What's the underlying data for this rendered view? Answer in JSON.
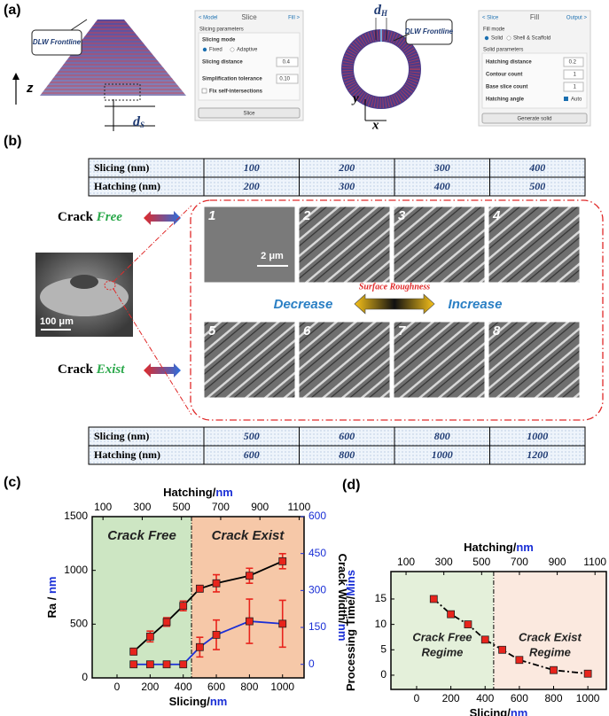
{
  "panel_a": {
    "label": "(a)",
    "left": {
      "callout": "DLW Frontline",
      "axis": "z",
      "dim": "d",
      "dim_sub": "S"
    },
    "slice_panel": {
      "back": "< Model",
      "title": "Slice",
      "next": "Fill >",
      "group": "Slicing parameters",
      "mode_label": "Slicing mode",
      "options": [
        "Fixed",
        "Adaptive"
      ],
      "fields": [
        [
          "Slicing distance",
          "0.4"
        ],
        [
          "Simplification tolerance",
          "0.10"
        ]
      ],
      "checkbox": "Fix self-intersections",
      "button": "Slice"
    },
    "right": {
      "callout": "DLW Frontline",
      "dim": "d",
      "dim_sub": "H",
      "axis_y": "y",
      "axis_x": "x"
    },
    "fill_panel": {
      "back": "< Slice",
      "title": "Fill",
      "next": "Output >",
      "group": "Fill mode",
      "options": [
        "Solid",
        "Shell & Scaffold"
      ],
      "group2": "Solid parameters",
      "fields": [
        [
          "Hatching distance",
          "0.2"
        ],
        [
          "Contour count",
          "1"
        ],
        [
          "Base slice count",
          "1"
        ]
      ],
      "checkbox": "Hatching angle",
      "checkbox_value": "Auto",
      "button": "Generate solid"
    }
  },
  "panel_b": {
    "label": "(b)",
    "table_top": {
      "rows": [
        [
          "Slicing (nm)",
          100,
          200,
          300,
          400
        ],
        [
          "Hatching (nm)",
          200,
          300,
          400,
          500
        ]
      ]
    },
    "table_bottom": {
      "rows": [
        [
          "Slicing (nm)",
          500,
          600,
          800,
          1000
        ],
        [
          "Hatching (nm)",
          600,
          800,
          1000,
          1200
        ]
      ]
    },
    "crack_free": {
      "word": "Crack",
      "state": "Free"
    },
    "crack_exist": {
      "word": "Crack",
      "state": "Exist"
    },
    "sem_scale": "100 μm",
    "tile_scale": "2 μm",
    "tiles": [
      1,
      2,
      3,
      4,
      5,
      6,
      7,
      8
    ],
    "roughness": "Surface Roughness",
    "decrease": "Decrease",
    "increase": "Increase"
  },
  "chart_data": [
    {
      "type": "line",
      "panel_label": "(c)",
      "x_label": "Slicing/",
      "x_label_unit": "nm",
      "x2_label": "Hatching/",
      "x2_label_unit": "nm",
      "y_label": "Ra / ",
      "y_label_unit": "nm",
      "y2_label": "Crack Width/",
      "y2_label_unit": "nm",
      "x": [
        100,
        200,
        300,
        400,
        500,
        600,
        800,
        1000
      ],
      "xlim": [
        -150,
        1130
      ],
      "xticks": [
        0,
        200,
        400,
        600,
        800,
        1000
      ],
      "x2lim": [
        45,
        1125
      ],
      "x2ticks": [
        100,
        300,
        500,
        700,
        900,
        1100
      ],
      "ylim": [
        0,
        1500
      ],
      "yticks": [
        0,
        500,
        1000,
        1500
      ],
      "y2lim": [
        -55,
        600
      ],
      "y2ticks": [
        0,
        150,
        300,
        450,
        600
      ],
      "divider": 450,
      "regions": [
        {
          "label": [
            "Crack  Free"
          ],
          "color": "#cde6c3"
        },
        {
          "label": [
            "Crack  Exist"
          ],
          "color": "#f6c8a8"
        }
      ],
      "series": [
        {
          "color": "#000000",
          "marker_color": "#e8241c",
          "line_style": "solid",
          "values": [
            245,
            385,
            520,
            670,
            830,
            880,
            950,
            1085
          ],
          "errors": [
            30,
            50,
            40,
            45,
            30,
            80,
            70,
            70
          ]
        },
        {
          "axis": "y2",
          "color": "#1a2fd6",
          "marker_color": "#e8241c",
          "line_style": "solid",
          "values": [
            0,
            0,
            0,
            0,
            70,
            120,
            175,
            165
          ],
          "errors": [
            null,
            null,
            null,
            null,
            40,
            60,
            90,
            95
          ]
        }
      ]
    },
    {
      "type": "line",
      "panel_label": "(d)",
      "x_label": "Slicing/",
      "x_label_unit": "nm",
      "x2_label": "Hatching/",
      "x2_label_unit": "nm",
      "y_label": "Processing Time/",
      "y_label_unit": "Mins",
      "x": [
        100,
        200,
        300,
        400,
        500,
        600,
        800,
        1000
      ],
      "xlim": [
        -150,
        1108
      ],
      "xticks": [
        0,
        200,
        400,
        600,
        800,
        1000
      ],
      "x2lim": [
        20,
        1160
      ],
      "x2ticks": [
        100,
        300,
        500,
        700,
        900,
        1100
      ],
      "ylim": [
        -2.8,
        20.4
      ],
      "yticks": [
        0,
        5,
        10,
        15
      ],
      "divider": 450,
      "regions": [
        {
          "label": [
            "Crack Free",
            "Regime"
          ],
          "color": "#e4f0da"
        },
        {
          "label": [
            "Crack  Exist",
            "Regime"
          ],
          "color": "#fbe9df"
        }
      ],
      "series": [
        {
          "color": "#000000",
          "marker_color": "#e8241c",
          "line_style": "dash-dot",
          "values": [
            15,
            12,
            10,
            7,
            5,
            3,
            1,
            0.3
          ]
        }
      ]
    }
  ]
}
